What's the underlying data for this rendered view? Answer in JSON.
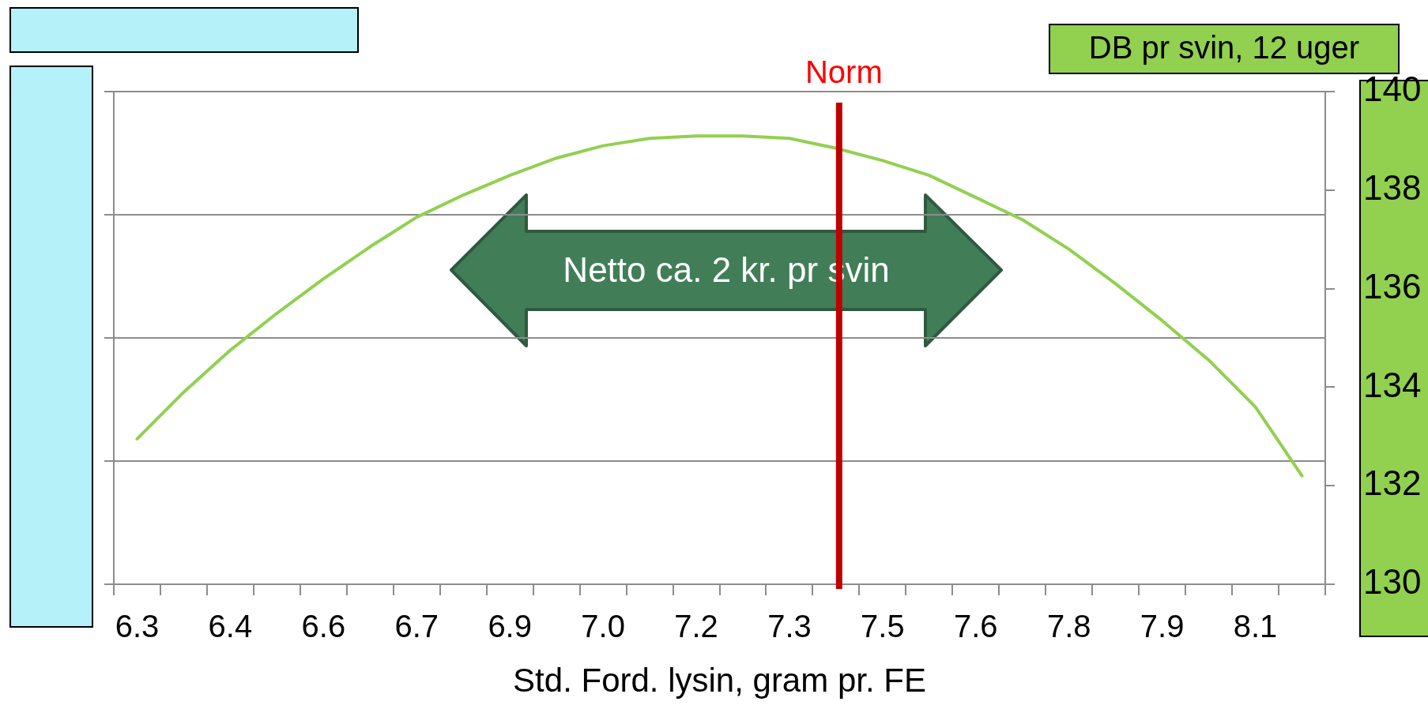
{
  "chart_data": {
    "type": "line",
    "xlabel": "Std. Ford. lysin, gram pr. FE",
    "y2label": "DB pr svin, 12 uger",
    "x": [
      6.25,
      6.325,
      6.4,
      6.475,
      6.55,
      6.625,
      6.7,
      6.775,
      6.85,
      6.925,
      7.0,
      7.075,
      7.15,
      7.225,
      7.3,
      7.375,
      7.45,
      7.525,
      7.6,
      7.675,
      7.75,
      7.825,
      7.9,
      7.975,
      8.05,
      8.125
    ],
    "series": [
      {
        "color": "#92d050",
        "axis": "y2",
        "values": [
          132.95,
          133.9,
          134.75,
          135.5,
          136.2,
          136.85,
          137.45,
          137.9,
          138.3,
          138.65,
          138.9,
          139.05,
          139.1,
          139.1,
          139.05,
          138.85,
          138.6,
          138.3,
          137.85,
          137.4,
          136.8,
          136.1,
          135.35,
          134.55,
          133.6,
          132.2
        ]
      }
    ],
    "xlim": [
      6.2125,
      8.1625
    ],
    "xticks": [
      {
        "value": 6.2125,
        "label": null
      },
      {
        "value": 6.25,
        "label": "6.3"
      },
      {
        "value": 6.2875,
        "label": null
      },
      {
        "value": 6.3625,
        "label": null
      },
      {
        "value": 6.4,
        "label": "6.4"
      },
      {
        "value": 6.4375,
        "label": null
      },
      {
        "value": 6.5125,
        "label": null
      },
      {
        "value": 6.55,
        "label": "6.6"
      },
      {
        "value": 6.5875,
        "label": null
      },
      {
        "value": 6.6625,
        "label": null
      },
      {
        "value": 6.7,
        "label": "6.7"
      },
      {
        "value": 6.7375,
        "label": null
      },
      {
        "value": 6.8125,
        "label": null
      },
      {
        "value": 6.85,
        "label": "6.9"
      },
      {
        "value": 6.8875,
        "label": null
      },
      {
        "value": 6.9625,
        "label": null
      },
      {
        "value": 7.0,
        "label": "7.0"
      },
      {
        "value": 7.0375,
        "label": null
      },
      {
        "value": 7.1125,
        "label": null
      },
      {
        "value": 7.15,
        "label": "7.2"
      },
      {
        "value": 7.1875,
        "label": null
      },
      {
        "value": 7.2625,
        "label": null
      },
      {
        "value": 7.3,
        "label": "7.3"
      },
      {
        "value": 7.3375,
        "label": null
      },
      {
        "value": 7.4125,
        "label": null
      },
      {
        "value": 7.45,
        "label": "7.5"
      },
      {
        "value": 7.4875,
        "label": null
      },
      {
        "value": 7.5625,
        "label": null
      },
      {
        "value": 7.6,
        "label": "7.6"
      },
      {
        "value": 7.6375,
        "label": null
      },
      {
        "value": 7.7125,
        "label": null
      },
      {
        "value": 7.75,
        "label": "7.8"
      },
      {
        "value": 7.7875,
        "label": null
      },
      {
        "value": 7.8625,
        "label": null
      },
      {
        "value": 7.9,
        "label": "7.9"
      },
      {
        "value": 7.9375,
        "label": null
      },
      {
        "value": 8.0125,
        "label": null
      },
      {
        "value": 8.05,
        "label": "8.1"
      },
      {
        "value": 8.0875,
        "label": null
      },
      {
        "value": 8.1625,
        "label": null
      }
    ],
    "y2lim": [
      130,
      140
    ],
    "y2ticks": [
      130,
      132,
      134,
      136,
      138,
      140
    ],
    "grid": "y",
    "ref_lines": [
      {
        "axis": "x",
        "value": 7.38,
        "label": "Norm",
        "color": "#c00000"
      }
    ],
    "annotations": [
      "Netto ca. 2 kr. pr svin"
    ]
  }
}
